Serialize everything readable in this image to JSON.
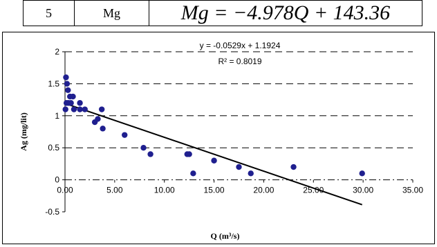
{
  "table": {
    "index": "5",
    "param": "Mg",
    "formula": "Mg = −4.978Q + 143.36"
  },
  "chart_data": {
    "type": "scatter",
    "title": "",
    "xlabel": "Q (m³/s)",
    "ylabel": "Ag (mg/lit)",
    "xlim": [
      0,
      35
    ],
    "ylim": [
      -0.5,
      2
    ],
    "x_ticks": [
      "0.00",
      "5.00",
      "10.00",
      "15.00",
      "20.00",
      "25.00",
      "30.00",
      "35.00"
    ],
    "y_ticks": [
      "-0.5",
      "0",
      "0.5",
      "1",
      "1.5",
      "2"
    ],
    "grid": "dashed horizontal",
    "trendline": {
      "equation": "y = -0.0529x + 1.1924",
      "r2": "R² = 0.8019",
      "slope": -0.0529,
      "intercept": 1.1924,
      "x_range": [
        0,
        29.9
      ]
    },
    "series": [
      {
        "points": [
          [
            0.1,
            1.6
          ],
          [
            0.2,
            1.5
          ],
          [
            0.05,
            1.1
          ],
          [
            0.15,
            1.2
          ],
          [
            0.3,
            1.4
          ],
          [
            0.35,
            1.2
          ],
          [
            0.5,
            1.3
          ],
          [
            0.6,
            1.2
          ],
          [
            0.8,
            1.3
          ],
          [
            0.9,
            1.1
          ],
          [
            1.5,
            1.2
          ],
          [
            1.5,
            1.1
          ],
          [
            2.0,
            1.1
          ],
          [
            3.0,
            0.9
          ],
          [
            3.3,
            0.95
          ],
          [
            3.7,
            1.1
          ],
          [
            3.8,
            0.8
          ],
          [
            6.0,
            0.7
          ],
          [
            7.9,
            0.5
          ],
          [
            8.6,
            0.4
          ],
          [
            12.3,
            0.4
          ],
          [
            12.5,
            0.4
          ],
          [
            12.9,
            0.1
          ],
          [
            15.0,
            0.3
          ],
          [
            17.5,
            0.2
          ],
          [
            18.7,
            0.1
          ],
          [
            23.0,
            0.2
          ],
          [
            29.9,
            0.1
          ]
        ]
      }
    ],
    "colors": {
      "points": "#1f1f8f",
      "trendline": "#000000",
      "grid": "#000000"
    }
  }
}
